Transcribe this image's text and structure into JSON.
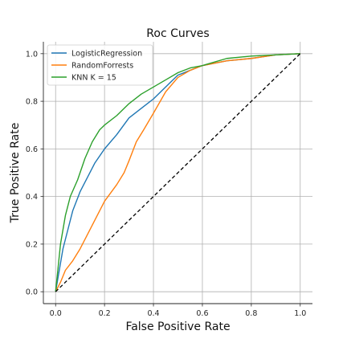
{
  "chart_data": {
    "type": "line",
    "title": "Roc Curves",
    "xlabel": "False Positive Rate",
    "ylabel": "True Positive Rate",
    "xlim": [
      -0.05,
      1.05
    ],
    "ylim": [
      -0.05,
      1.05
    ],
    "xticks": [
      "0.0",
      "0.2",
      "0.4",
      "0.6",
      "0.8",
      "1.0"
    ],
    "yticks": [
      "0.0",
      "0.2",
      "0.4",
      "0.6",
      "0.8",
      "1.0"
    ],
    "grid": true,
    "legend_position": "top-left",
    "series": [
      {
        "name": "LogisticRegression",
        "color": "#1f77b4",
        "x": [
          0.0,
          0.01,
          0.02,
          0.03,
          0.05,
          0.07,
          0.1,
          0.13,
          0.16,
          0.2,
          0.25,
          0.3,
          0.35,
          0.4,
          0.45,
          0.5,
          0.55,
          0.6,
          0.7,
          0.8,
          0.9,
          1.0
        ],
        "y": [
          0.0,
          0.06,
          0.12,
          0.18,
          0.26,
          0.34,
          0.42,
          0.48,
          0.54,
          0.6,
          0.66,
          0.73,
          0.77,
          0.81,
          0.86,
          0.91,
          0.93,
          0.95,
          0.97,
          0.98,
          0.995,
          1.0
        ]
      },
      {
        "name": "RandomForrests",
        "color": "#ff7f0e",
        "x": [
          0.0,
          0.02,
          0.04,
          0.07,
          0.1,
          0.13,
          0.16,
          0.2,
          0.25,
          0.28,
          0.3,
          0.33,
          0.36,
          0.4,
          0.45,
          0.5,
          0.55,
          0.6,
          0.7,
          0.8,
          0.9,
          1.0
        ],
        "y": [
          0.0,
          0.04,
          0.09,
          0.13,
          0.18,
          0.24,
          0.3,
          0.38,
          0.45,
          0.5,
          0.55,
          0.63,
          0.68,
          0.75,
          0.84,
          0.9,
          0.93,
          0.95,
          0.97,
          0.98,
          0.995,
          1.0
        ]
      },
      {
        "name": "KNN K = 15",
        "color": "#2ca02c",
        "x": [
          0.0,
          0.01,
          0.02,
          0.04,
          0.06,
          0.09,
          0.12,
          0.15,
          0.18,
          0.2,
          0.25,
          0.3,
          0.35,
          0.4,
          0.45,
          0.5,
          0.55,
          0.6,
          0.7,
          0.8,
          0.9,
          1.0
        ],
        "y": [
          0.0,
          0.1,
          0.2,
          0.32,
          0.4,
          0.47,
          0.56,
          0.63,
          0.68,
          0.7,
          0.74,
          0.79,
          0.83,
          0.86,
          0.89,
          0.92,
          0.94,
          0.95,
          0.98,
          0.99,
          0.995,
          1.0
        ]
      },
      {
        "name": "",
        "color": "#000000",
        "dashed": true,
        "x": [
          0.0,
          1.0
        ],
        "y": [
          0.0,
          1.0
        ]
      }
    ]
  }
}
